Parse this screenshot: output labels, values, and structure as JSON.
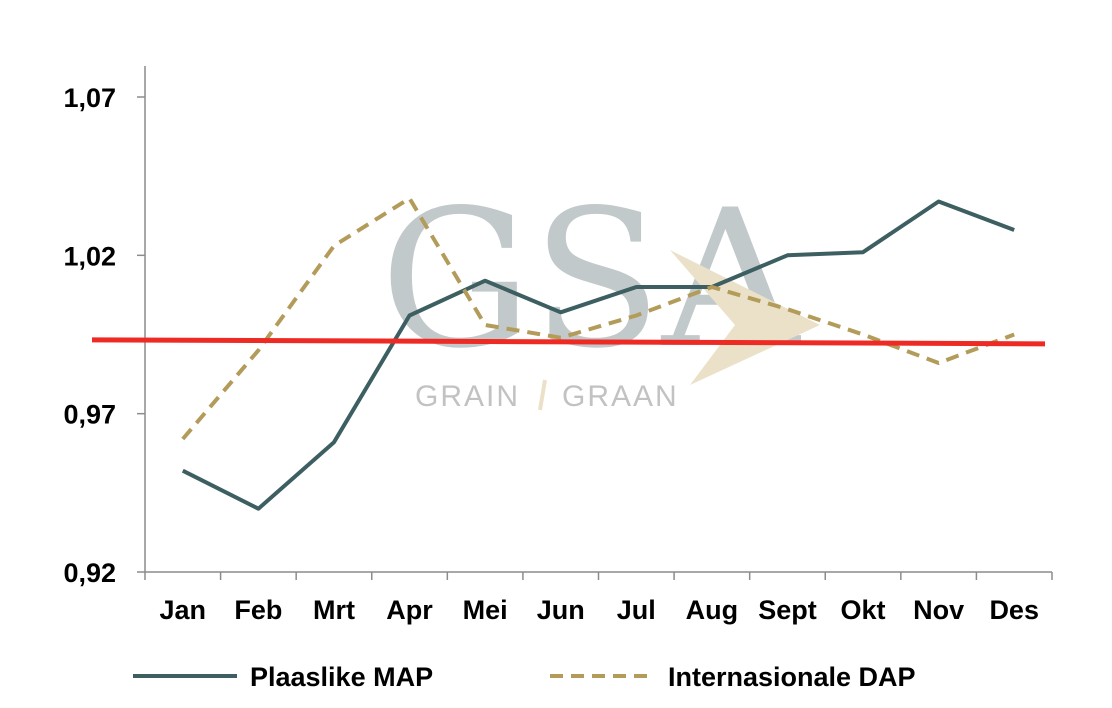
{
  "chart_data": {
    "type": "line",
    "categories": [
      "Jan",
      "Feb",
      "Mrt",
      "Apr",
      "Mei",
      "Jun",
      "Jul",
      "Aug",
      "Sept",
      "Okt",
      "Nov",
      "Des"
    ],
    "series": [
      {
        "name": "Plaaslike MAP",
        "values": [
          0.952,
          0.94,
          0.961,
          1.001,
          1.012,
          1.002,
          1.01,
          1.01,
          1.02,
          1.021,
          1.037,
          1.028
        ],
        "color": "#3d5f62",
        "style": "solid"
      },
      {
        "name": "Internasionale DAP",
        "values": [
          0.962,
          0.99,
          1.023,
          1.038,
          0.998,
          0.994,
          1.001,
          1.01,
          1.003,
          0.995,
          0.986,
          0.995
        ],
        "color": "#b39c5a",
        "style": "dashed"
      }
    ],
    "reference_line": {
      "value": 0.993,
      "color": "#ee2a24"
    },
    "yticks": [
      "1,07",
      "1,02",
      "0,97",
      "0,92"
    ],
    "ylim": [
      0.92,
      1.08
    ],
    "title": "",
    "xlabel": "",
    "ylabel": "",
    "legend_position": "bottom",
    "grid": false
  },
  "watermark": {
    "logo_text": "GSA",
    "sub_left": "GRAIN",
    "sub_right": "GRAAN",
    "colors": {
      "grey": "#b8c0c2",
      "gold": "#e8dcc0"
    }
  }
}
